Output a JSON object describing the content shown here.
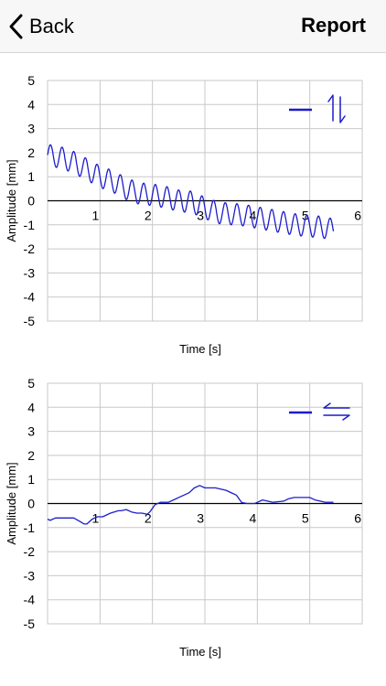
{
  "navbar": {
    "back_label": "Back",
    "title": "Report"
  },
  "chart_data": [
    {
      "type": "line",
      "xlabel": "Time [s]",
      "ylabel": "Amplitude [mm]",
      "xlim": [
        0,
        6
      ],
      "ylim": [
        -5,
        5
      ],
      "x_ticks": [
        "1",
        "2",
        "3",
        "4",
        "5",
        "6"
      ],
      "y_ticks": [
        "5",
        "4",
        "3",
        "2",
        "1",
        "0",
        "-1",
        "-2",
        "-3",
        "-4",
        "-5"
      ],
      "grid": true,
      "legend_icons": [
        "dash-icon",
        "vertical-arrows-icon"
      ],
      "series_color": "#1c1ccc",
      "series": [
        {
          "x": [
            0,
            0.25,
            0.5,
            0.75,
            1,
            1.25,
            1.5,
            1.75,
            2,
            2.25,
            2.5,
            2.75,
            3,
            3.25,
            3.5,
            3.75,
            4,
            4.25,
            4.5,
            4.75,
            5,
            5.25,
            5.45
          ],
          "y": [
            1.9,
            1.8,
            1.6,
            1.3,
            1.0,
            0.8,
            0.5,
            0.3,
            0.25,
            0.15,
            0.0,
            -0.05,
            -0.3,
            -0.5,
            -0.55,
            -0.6,
            -0.7,
            -0.8,
            -0.9,
            -1.0,
            -1.05,
            -1.1,
            -1.2
          ],
          "oscillation_amplitude": 0.45,
          "oscillation_frequency_hz": 4.5
        }
      ]
    },
    {
      "type": "line",
      "xlabel": "Time [s]",
      "ylabel": "Amplitude [mm]",
      "xlim": [
        0,
        6
      ],
      "ylim": [
        -5,
        5
      ],
      "x_ticks": [
        "1",
        "2",
        "3",
        "4",
        "5",
        "6"
      ],
      "y_ticks": [
        "5",
        "4",
        "3",
        "2",
        "1",
        "0",
        "-1",
        "-2",
        "-3",
        "-4",
        "-5"
      ],
      "grid": true,
      "legend_icons": [
        "dash-icon",
        "horizontal-arrows-icon"
      ],
      "series_color": "#1c1ccc",
      "series": [
        {
          "x": [
            0,
            0.05,
            0.15,
            0.2,
            0.35,
            0.5,
            0.62,
            0.7,
            0.75,
            0.85,
            0.95,
            1.05,
            1.2,
            1.35,
            1.4,
            1.5,
            1.6,
            1.7,
            1.8,
            1.9,
            1.95,
            2.05,
            2.15,
            2.3,
            2.4,
            2.5,
            2.6,
            2.7,
            2.8,
            2.9,
            3.0,
            3.2,
            3.4,
            3.6,
            3.7,
            3.8,
            3.95,
            4.0,
            4.1,
            4.3,
            4.5,
            4.6,
            4.7,
            4.8,
            5.0,
            5.1,
            5.2,
            5.3,
            5.45
          ],
          "y": [
            -0.65,
            -0.7,
            -0.6,
            -0.6,
            -0.6,
            -0.6,
            -0.75,
            -0.85,
            -0.85,
            -0.65,
            -0.55,
            -0.55,
            -0.4,
            -0.3,
            -0.3,
            -0.25,
            -0.35,
            -0.4,
            -0.4,
            -0.45,
            -0.35,
            -0.05,
            0.05,
            0.05,
            0.15,
            0.25,
            0.35,
            0.45,
            0.65,
            0.75,
            0.65,
            0.65,
            0.55,
            0.35,
            0.05,
            0.0,
            0.0,
            0.05,
            0.15,
            0.05,
            0.1,
            0.2,
            0.25,
            0.25,
            0.25,
            0.15,
            0.1,
            0.05,
            0.05
          ]
        }
      ]
    }
  ]
}
